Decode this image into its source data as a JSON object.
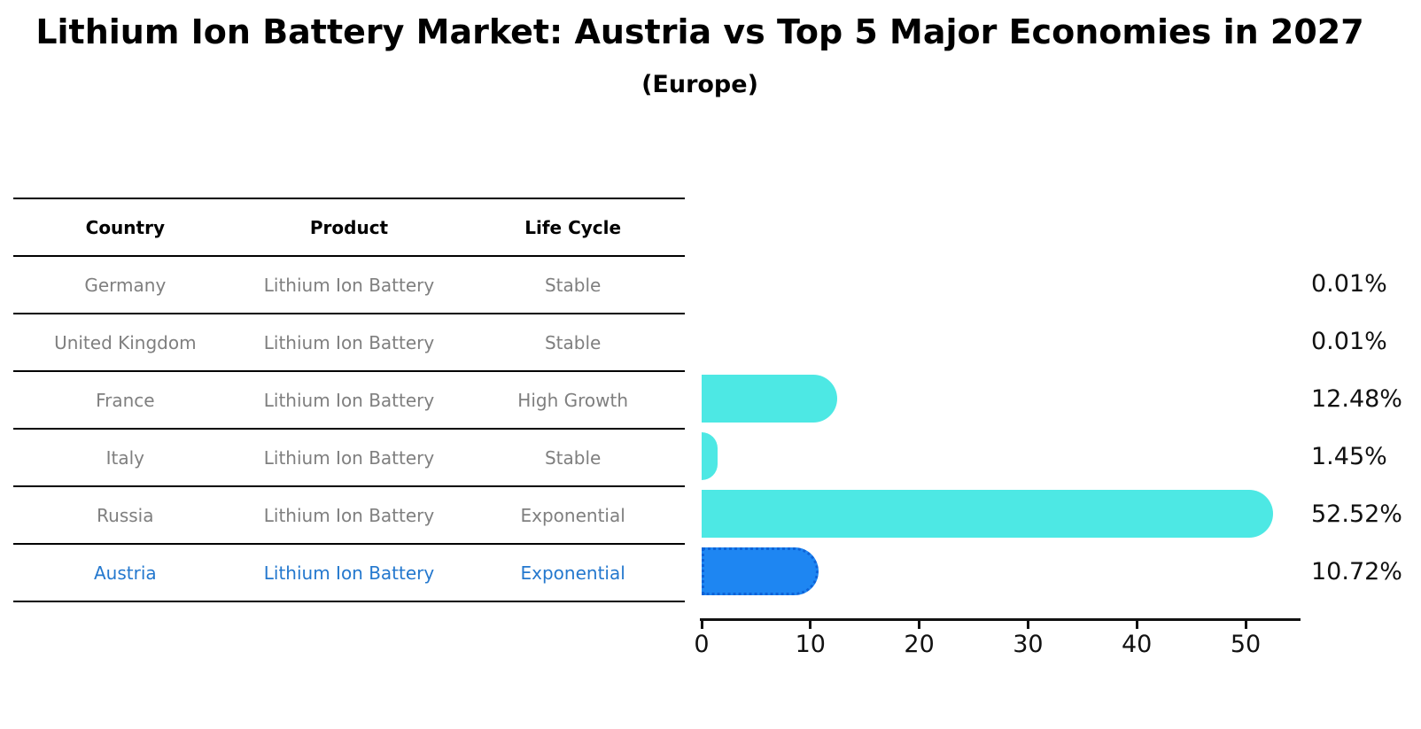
{
  "title": "Lithium Ion Battery Market: Austria vs Top 5 Major Economies in 2027",
  "subtitle": "(Europe)",
  "table": {
    "headers": {
      "country": "Country",
      "product": "Product",
      "life_cycle": "Life Cycle"
    },
    "rows": [
      {
        "country": "Germany",
        "product": "Lithium Ion Battery",
        "life_cycle": "Stable"
      },
      {
        "country": "United Kingdom",
        "product": "Lithium Ion Battery",
        "life_cycle": "Stable"
      },
      {
        "country": "France",
        "product": "Lithium Ion Battery",
        "life_cycle": "High Growth"
      },
      {
        "country": "Italy",
        "product": "Lithium Ion Battery",
        "life_cycle": "Stable"
      },
      {
        "country": "Russia",
        "product": "Lithium Ion Battery",
        "life_cycle": "Exponential"
      },
      {
        "country": "Austria",
        "product": "Lithium Ion Battery",
        "life_cycle": "Exponential"
      }
    ]
  },
  "chart_data": {
    "type": "bar",
    "orientation": "horizontal",
    "title": "Lithium Ion Battery Market: Austria vs Top 5 Major Economies in 2027 (Europe)",
    "categories": [
      "Germany",
      "United Kingdom",
      "France",
      "Italy",
      "Russia",
      "Austria"
    ],
    "values": [
      0.01,
      0.01,
      12.48,
      1.45,
      52.52,
      10.72
    ],
    "value_labels": [
      "0.01%",
      "0.01%",
      "12.48%",
      "1.45%",
      "52.52%",
      "10.72%"
    ],
    "unit": "%",
    "xlim": [
      0,
      55
    ],
    "x_ticks": [
      0,
      10,
      20,
      30,
      40,
      50
    ],
    "grid": false,
    "legend": false,
    "highlight_index": 5,
    "colors": {
      "bar": "#4de8e4",
      "highlight_bar": "#1e86f2",
      "highlight_bar_border": "#0e63d8",
      "highlight_text": "#2478ce",
      "table_text": "#7f7f7f",
      "axis_text": "#111111"
    }
  }
}
